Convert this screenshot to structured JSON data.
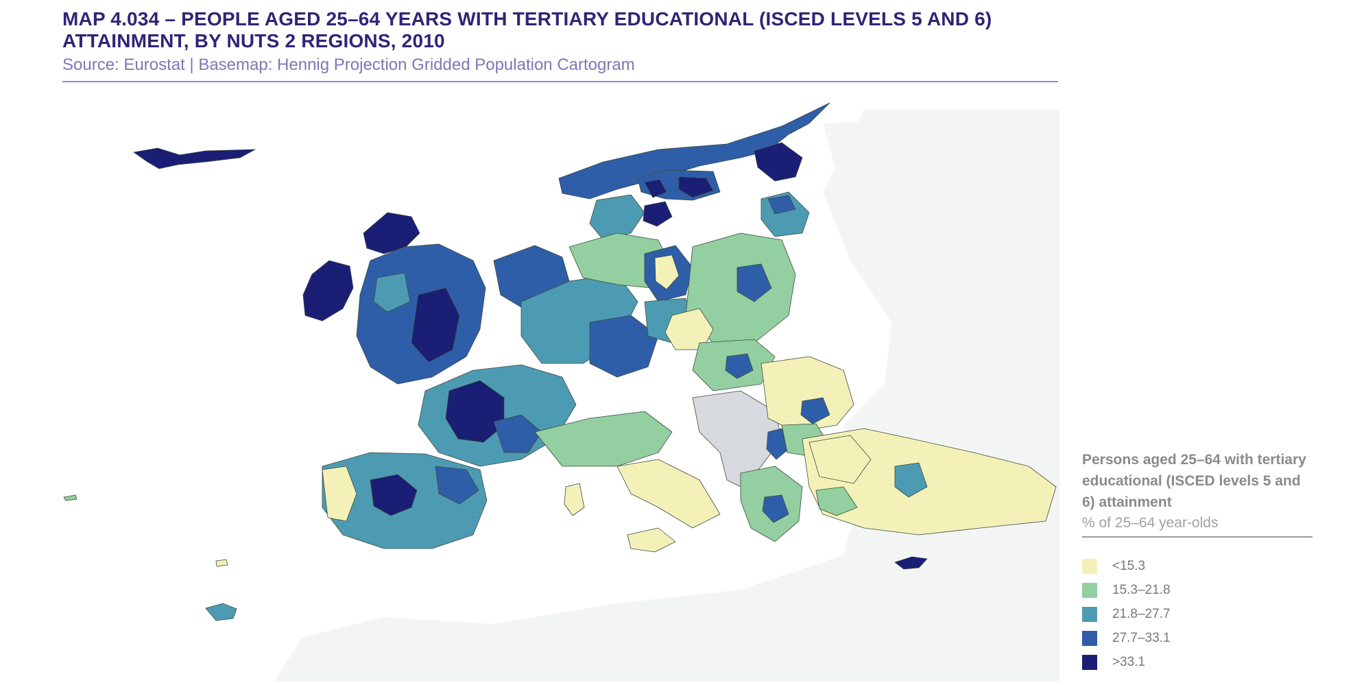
{
  "header": {
    "title": "MAP 4.034 – PEOPLE AGED 25–64 YEARS WITH TERTIARY EDUCATIONAL (ISCED LEVELS 5 AND 6) ATTAINMENT, BY NUTS 2 REGIONS, 2010",
    "source": "Source: Eurostat  |  Basemap: Hennig Projection Gridded Population Cartogram"
  },
  "legend": {
    "title": "Persons aged 25–64 with tertiary educational (ISCED levels 5 and 6) attainment",
    "unit": "% of 25–64 year-olds",
    "classes": [
      {
        "label": "<15.3",
        "color": "#f4f1b8"
      },
      {
        "label": "15.3–21.8",
        "color": "#93cfa0"
      },
      {
        "label": "21.8–27.7",
        "color": "#4d9bb2"
      },
      {
        "label": "27.7–33.1",
        "color": "#2f5ea8"
      },
      {
        "label": ">33.1",
        "color": "#1a1e75"
      }
    ]
  },
  "map": {
    "background_land": "#f3f5f4",
    "no_data_color": "#d6d9dd",
    "border_color": "#3b4a3e"
  }
}
